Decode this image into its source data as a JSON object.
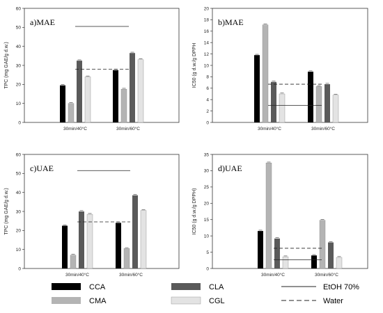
{
  "colors": {
    "CCA": "#000000",
    "CMA": "#b4b4b4",
    "CLA": "#5a5a5a",
    "CGL": "#e3e3e3"
  },
  "legend": [
    {
      "key": "CCA",
      "label": "CCA",
      "kind": "bar"
    },
    {
      "key": "CMA",
      "label": "CMA",
      "kind": "bar"
    },
    {
      "key": "CLA",
      "label": "CLA",
      "kind": "bar"
    },
    {
      "key": "CGL",
      "label": "CGL",
      "kind": "bar"
    },
    {
      "key": "etoh",
      "label": "EtOH 70%",
      "kind": "solid-line"
    },
    {
      "key": "water",
      "label": "Water",
      "kind": "dashed-line"
    }
  ],
  "chart_data": [
    {
      "type": "bar",
      "title": "a)MAE",
      "ylabel": "TPC (mg GAE/g d.w.)",
      "ylim": [
        0,
        60
      ],
      "yticks": [
        0,
        10,
        20,
        30,
        40,
        50,
        60
      ],
      "categories": [
        "30min/40°C",
        "30min/60°C"
      ],
      "series": [
        {
          "name": "CCA",
          "values": [
            19.5,
            27.5
          ]
        },
        {
          "name": "CMA",
          "values": [
            10,
            17.5
          ]
        },
        {
          "name": "CLA",
          "values": [
            32.5,
            36.5
          ]
        },
        {
          "name": "CGL",
          "values": [
            24,
            33
          ]
        }
      ],
      "reference_lines": {
        "EtOH 70%": 50.5,
        "Water": 28
      }
    },
    {
      "type": "bar",
      "title": "b)MAE",
      "ylabel": "IC50 (g d.w./g DPPH",
      "ylim": [
        0,
        20
      ],
      "yticks": [
        0,
        2,
        4,
        6,
        8,
        10,
        12,
        14,
        16,
        18,
        20
      ],
      "categories": [
        "30min/40°C",
        "30min/60°C"
      ],
      "series": [
        {
          "name": "CCA",
          "values": [
            11.8,
            8.9
          ]
        },
        {
          "name": "CMA",
          "values": [
            17.1,
            6.3
          ]
        },
        {
          "name": "CLA",
          "values": [
            7.1,
            6.7
          ]
        },
        {
          "name": "CGL",
          "values": [
            5,
            4.8
          ]
        }
      ],
      "reference_lines": {
        "EtOH 70%": 3,
        "Water": 6.7
      }
    },
    {
      "type": "bar",
      "title": "c)UAE",
      "ylabel": "TPC (mg GAE/g d.w.)",
      "ylim": [
        0,
        60
      ],
      "yticks": [
        0,
        10,
        20,
        30,
        40,
        50,
        60
      ],
      "categories": [
        "30min/40°C",
        "30min/60°C"
      ],
      "series": [
        {
          "name": "CCA",
          "values": [
            22.5,
            24
          ]
        },
        {
          "name": "CMA",
          "values": [
            7,
            10.5
          ]
        },
        {
          "name": "CLA",
          "values": [
            30,
            38.5
          ]
        },
        {
          "name": "CGL",
          "values": [
            28.5,
            30.5
          ]
        }
      ],
      "reference_lines": {
        "EtOH 70%": 51.5,
        "Water": 24.5
      }
    },
    {
      "type": "bar",
      "title": "d)UAE",
      "ylabel": "IC50 (g d.w./g DPPH)",
      "ylim": [
        0,
        35
      ],
      "yticks": [
        0,
        5,
        10,
        15,
        20,
        25,
        30,
        35
      ],
      "categories": [
        "30min/40°C",
        "30min/60°C"
      ],
      "series": [
        {
          "name": "CCA",
          "values": [
            11.5,
            4
          ]
        },
        {
          "name": "CMA",
          "values": [
            32.4,
            14.8
          ]
        },
        {
          "name": "CLA",
          "values": [
            9.2,
            8
          ]
        },
        {
          "name": "CGL",
          "values": [
            3.6,
            3.4
          ]
        }
      ],
      "reference_lines": {
        "EtOH 70%": 2.7,
        "Water": 6.2
      }
    }
  ]
}
